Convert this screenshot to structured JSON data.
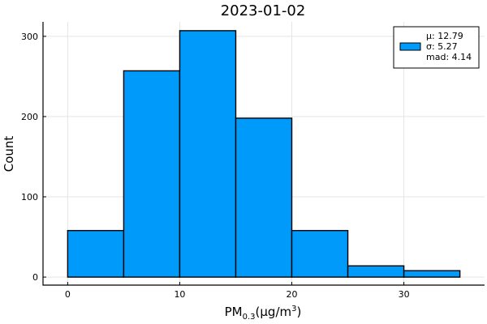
{
  "chart_data": {
    "type": "bar",
    "title": "2023-01-02",
    "xlabel": {
      "base": "PM",
      "sub": "0.3",
      "unit_open": "(µg/m",
      "sup": "3",
      "unit_close": ")"
    },
    "ylabel": "Count",
    "bin_edges": [
      0,
      5,
      10,
      15,
      20,
      25,
      30,
      35
    ],
    "values": [
      58,
      257,
      307,
      198,
      58,
      14,
      8
    ],
    "xlim": [
      -2.2,
      37.2
    ],
    "ylim": [
      -10,
      318
    ],
    "x_ticks": [
      0,
      10,
      20,
      30
    ],
    "y_ticks": [
      0,
      100,
      200,
      300
    ],
    "grid": true,
    "bar_color": "#009AFA",
    "legend": {
      "placement": "top-right",
      "lines": [
        "µ: 12.79",
        "σ: 5.27",
        "mad: 4.14"
      ]
    }
  }
}
